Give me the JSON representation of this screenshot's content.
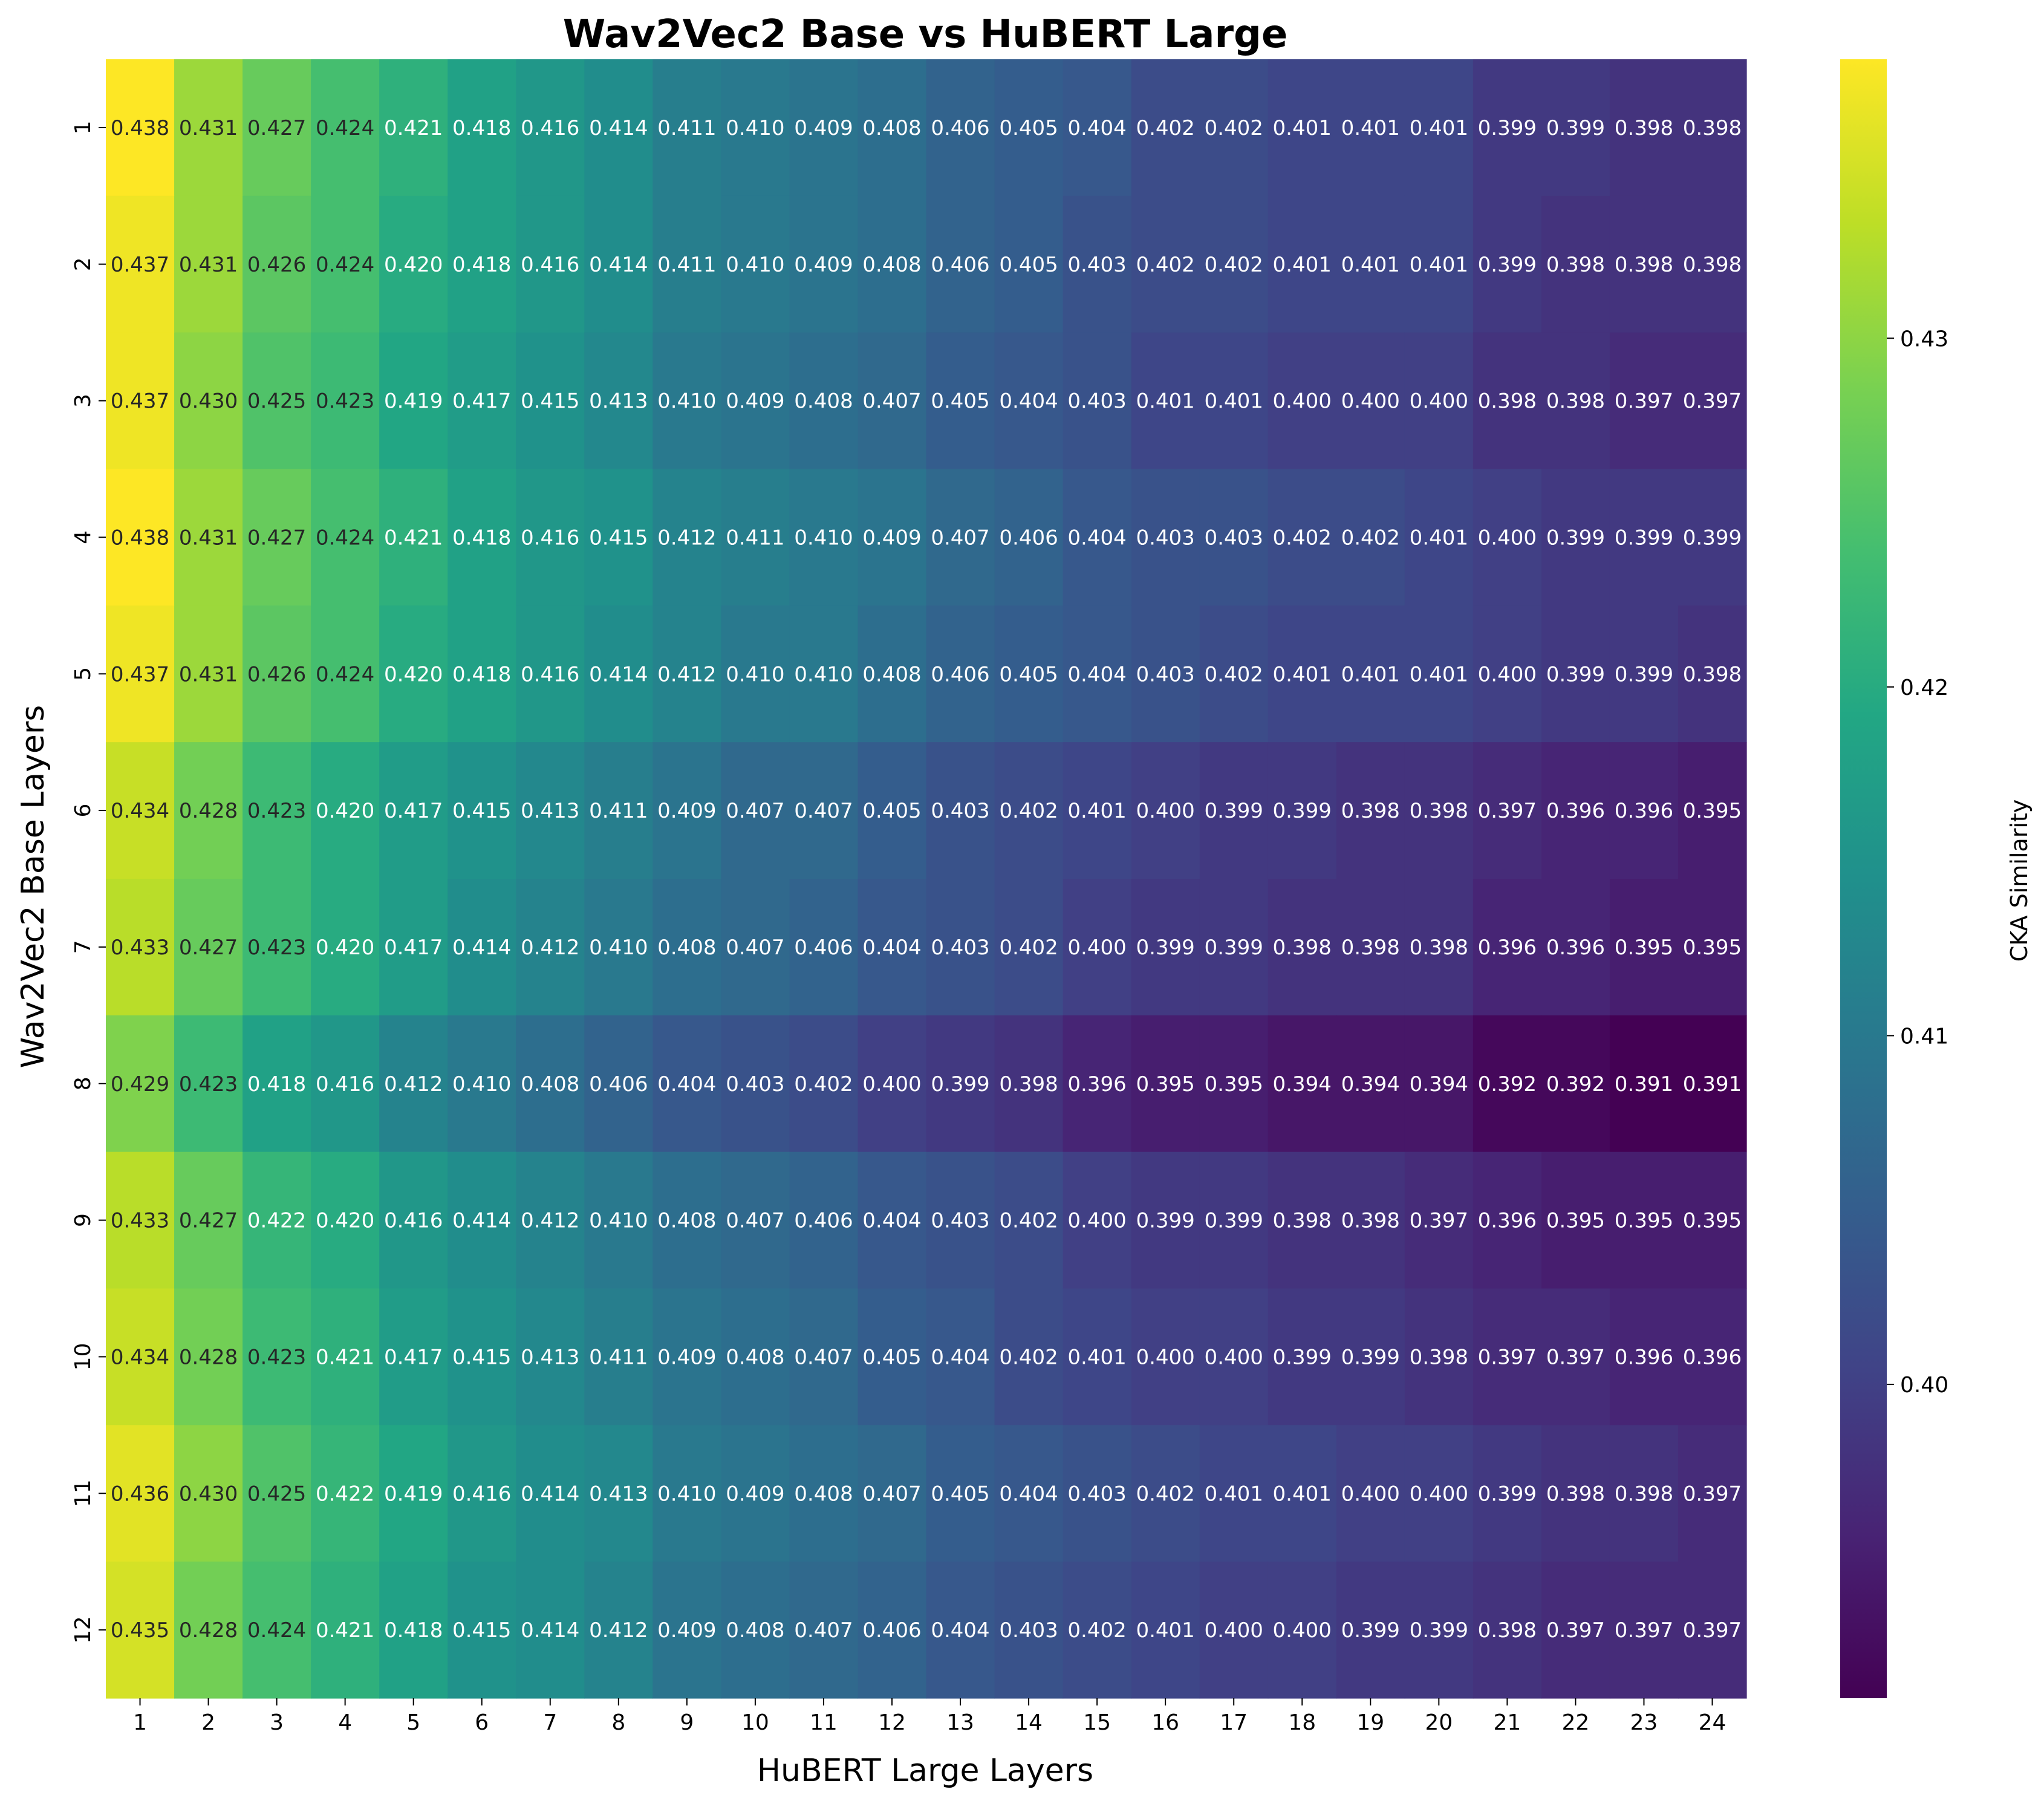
{
  "chart_data": {
    "type": "heatmap",
    "title": "Wav2Vec2 Base vs HuBERT Large",
    "xlabel": "HuBERT Large Layers",
    "ylabel": "Wav2Vec2 Base Layers",
    "x_categories": [
      "1",
      "2",
      "3",
      "4",
      "5",
      "6",
      "7",
      "8",
      "9",
      "10",
      "11",
      "12",
      "13",
      "14",
      "15",
      "16",
      "17",
      "18",
      "19",
      "20",
      "21",
      "22",
      "23",
      "24"
    ],
    "y_categories": [
      "1",
      "2",
      "3",
      "4",
      "5",
      "6",
      "7",
      "8",
      "9",
      "10",
      "11",
      "12"
    ],
    "values": [
      [
        0.438,
        0.431,
        0.427,
        0.424,
        0.421,
        0.418,
        0.416,
        0.414,
        0.411,
        0.41,
        0.409,
        0.408,
        0.406,
        0.405,
        0.404,
        0.402,
        0.402,
        0.401,
        0.401,
        0.401,
        0.399,
        0.399,
        0.398,
        0.398
      ],
      [
        0.437,
        0.431,
        0.426,
        0.424,
        0.42,
        0.418,
        0.416,
        0.414,
        0.411,
        0.41,
        0.409,
        0.408,
        0.406,
        0.405,
        0.403,
        0.402,
        0.402,
        0.401,
        0.401,
        0.401,
        0.399,
        0.398,
        0.398,
        0.398
      ],
      [
        0.437,
        0.43,
        0.425,
        0.423,
        0.419,
        0.417,
        0.415,
        0.413,
        0.41,
        0.409,
        0.408,
        0.407,
        0.405,
        0.404,
        0.403,
        0.401,
        0.401,
        0.4,
        0.4,
        0.4,
        0.398,
        0.398,
        0.397,
        0.397
      ],
      [
        0.438,
        0.431,
        0.427,
        0.424,
        0.421,
        0.418,
        0.416,
        0.415,
        0.412,
        0.411,
        0.41,
        0.409,
        0.407,
        0.406,
        0.404,
        0.403,
        0.403,
        0.402,
        0.402,
        0.401,
        0.4,
        0.399,
        0.399,
        0.399
      ],
      [
        0.437,
        0.431,
        0.426,
        0.424,
        0.42,
        0.418,
        0.416,
        0.414,
        0.412,
        0.41,
        0.41,
        0.408,
        0.406,
        0.405,
        0.404,
        0.403,
        0.402,
        0.401,
        0.401,
        0.401,
        0.4,
        0.399,
        0.399,
        0.398
      ],
      [
        0.434,
        0.428,
        0.423,
        0.42,
        0.417,
        0.415,
        0.413,
        0.411,
        0.409,
        0.407,
        0.407,
        0.405,
        0.403,
        0.402,
        0.401,
        0.4,
        0.399,
        0.399,
        0.398,
        0.398,
        0.397,
        0.396,
        0.396,
        0.395
      ],
      [
        0.433,
        0.427,
        0.423,
        0.42,
        0.417,
        0.414,
        0.412,
        0.41,
        0.408,
        0.407,
        0.406,
        0.404,
        0.403,
        0.402,
        0.4,
        0.399,
        0.399,
        0.398,
        0.398,
        0.398,
        0.396,
        0.396,
        0.395,
        0.395
      ],
      [
        0.429,
        0.423,
        0.418,
        0.416,
        0.412,
        0.41,
        0.408,
        0.406,
        0.404,
        0.403,
        0.402,
        0.4,
        0.399,
        0.398,
        0.396,
        0.395,
        0.395,
        0.394,
        0.394,
        0.394,
        0.392,
        0.392,
        0.391,
        0.391
      ],
      [
        0.433,
        0.427,
        0.422,
        0.42,
        0.416,
        0.414,
        0.412,
        0.41,
        0.408,
        0.407,
        0.406,
        0.404,
        0.403,
        0.402,
        0.4,
        0.399,
        0.399,
        0.398,
        0.398,
        0.397,
        0.396,
        0.395,
        0.395,
        0.395
      ],
      [
        0.434,
        0.428,
        0.423,
        0.421,
        0.417,
        0.415,
        0.413,
        0.411,
        0.409,
        0.408,
        0.407,
        0.405,
        0.404,
        0.402,
        0.401,
        0.4,
        0.4,
        0.399,
        0.399,
        0.398,
        0.397,
        0.397,
        0.396,
        0.396
      ],
      [
        0.436,
        0.43,
        0.425,
        0.422,
        0.419,
        0.416,
        0.414,
        0.413,
        0.41,
        0.409,
        0.408,
        0.407,
        0.405,
        0.404,
        0.403,
        0.402,
        0.401,
        0.401,
        0.4,
        0.4,
        0.399,
        0.398,
        0.398,
        0.397
      ],
      [
        0.435,
        0.428,
        0.424,
        0.421,
        0.418,
        0.415,
        0.414,
        0.412,
        0.409,
        0.408,
        0.407,
        0.406,
        0.404,
        0.403,
        0.402,
        0.401,
        0.4,
        0.4,
        0.399,
        0.399,
        0.398,
        0.397,
        0.397,
        0.397
      ]
    ],
    "colormap": "viridis",
    "vmin": 0.391,
    "vmax": 0.438,
    "colorbar": {
      "label": "CKA Similarity",
      "ticks": [
        0.4,
        0.41,
        0.42,
        0.43
      ],
      "tick_labels": [
        "0.40",
        "0.41",
        "0.42",
        "0.43"
      ]
    },
    "grid": false,
    "annotations": true
  }
}
